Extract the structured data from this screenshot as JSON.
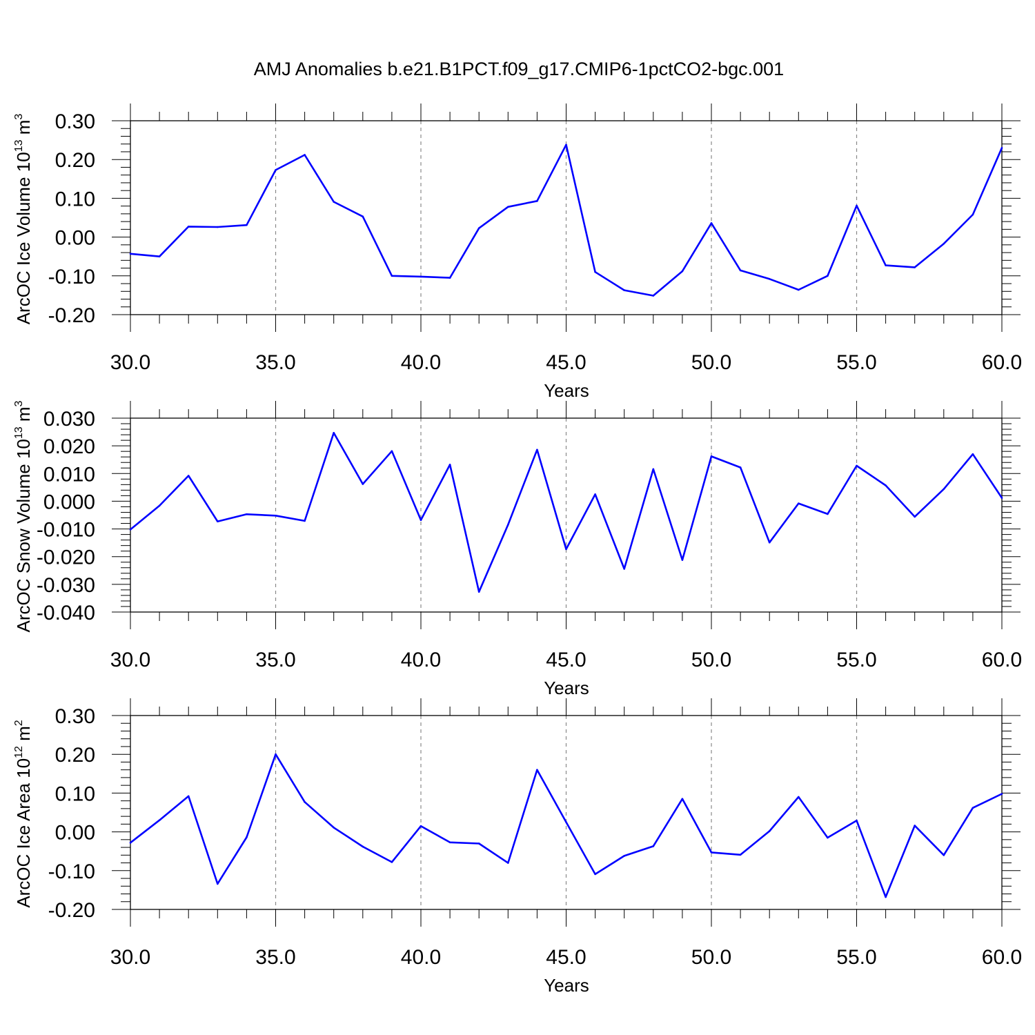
{
  "figure": {
    "title": "AMJ Anomalies b.e21.B1PCT.f09_g17.CMIP6-1pctCO2-bgc.001",
    "line_color": "#0000ff"
  },
  "chart_data": [
    {
      "type": "line",
      "title": "",
      "xlabel": "Years",
      "ylabel": "ArcOC Ice Volume 10",
      "ylabel_sup": "13",
      "ylabel_unit": "m",
      "ylabel_unit_sup": "3",
      "xlim": [
        30,
        60
      ],
      "ylim": [
        -0.2,
        0.3
      ],
      "xticks": [
        30,
        35,
        40,
        45,
        50,
        55,
        60
      ],
      "xtick_labels": [
        "30.0",
        "35.0",
        "40.0",
        "45.0",
        "50.0",
        "55.0",
        "60.0"
      ],
      "yticks": [
        -0.2,
        -0.1,
        0.0,
        0.1,
        0.2,
        0.3
      ],
      "ytick_labels": [
        "-0.20",
        "-0.10",
        "0.00",
        "0.10",
        "0.20",
        "0.30"
      ],
      "grid": "vertical dashed at major x ticks",
      "x": [
        30,
        31,
        32,
        33,
        34,
        35,
        36,
        37,
        38,
        39,
        40,
        41,
        42,
        43,
        44,
        45,
        46,
        47,
        48,
        49,
        50,
        51,
        52,
        53,
        54,
        55,
        56,
        57,
        58,
        59,
        60
      ],
      "series": [
        {
          "values": [
            -0.043,
            -0.05,
            0.027,
            0.026,
            0.031,
            0.173,
            0.212,
            0.091,
            0.053,
            -0.1,
            -0.102,
            -0.105,
            0.023,
            0.078,
            0.093,
            0.238,
            -0.09,
            -0.137,
            -0.151,
            -0.088,
            0.036,
            -0.086,
            -0.108,
            -0.136,
            -0.1,
            0.081,
            -0.073,
            -0.078,
            -0.017,
            0.058,
            0.23
          ]
        }
      ]
    },
    {
      "type": "line",
      "title": "",
      "xlabel": "Years",
      "ylabel": "ArcOC Snow Volume 10",
      "ylabel_sup": "13",
      "ylabel_unit": "m",
      "ylabel_unit_sup": "3",
      "xlim": [
        30,
        60
      ],
      "ylim": [
        -0.04,
        0.03
      ],
      "xticks": [
        30,
        35,
        40,
        45,
        50,
        55,
        60
      ],
      "xtick_labels": [
        "30.0",
        "35.0",
        "40.0",
        "45.0",
        "50.0",
        "55.0",
        "60.0"
      ],
      "yticks": [
        -0.04,
        -0.03,
        -0.02,
        -0.01,
        0.0,
        0.01,
        0.02,
        0.03
      ],
      "ytick_labels": [
        "-0.040",
        "-0.030",
        "-0.020",
        "-0.010",
        "0.000",
        "0.010",
        "0.020",
        "0.030"
      ],
      "grid": "vertical dashed at major x ticks",
      "x": [
        30,
        31,
        32,
        33,
        34,
        35,
        36,
        37,
        38,
        39,
        40,
        41,
        42,
        43,
        44,
        45,
        46,
        47,
        48,
        49,
        50,
        51,
        52,
        53,
        54,
        55,
        56,
        57,
        58,
        59,
        60
      ],
      "series": [
        {
          "values": [
            -0.0102,
            -0.0016,
            0.0092,
            -0.0073,
            -0.0047,
            -0.0052,
            -0.0071,
            0.0247,
            0.0062,
            0.0181,
            -0.0068,
            0.0132,
            -0.0327,
            -0.0085,
            0.0186,
            -0.0173,
            0.0025,
            -0.0244,
            0.0116,
            -0.0212,
            0.0162,
            0.0122,
            -0.0149,
            -0.0008,
            -0.0046,
            0.0128,
            0.0057,
            -0.0056,
            0.0044,
            0.017,
            0.0012
          ]
        }
      ]
    },
    {
      "type": "line",
      "title": "",
      "xlabel": "Years",
      "ylabel": "ArcOC Ice Area 10",
      "ylabel_sup": "12",
      "ylabel_unit": "m",
      "ylabel_unit_sup": "2",
      "xlim": [
        30,
        60
      ],
      "ylim": [
        -0.2,
        0.3
      ],
      "xticks": [
        30,
        35,
        40,
        45,
        50,
        55,
        60
      ],
      "xtick_labels": [
        "30.0",
        "35.0",
        "40.0",
        "45.0",
        "50.0",
        "55.0",
        "60.0"
      ],
      "yticks": [
        -0.2,
        -0.1,
        0.0,
        0.1,
        0.2,
        0.3
      ],
      "ytick_labels": [
        "-0.20",
        "-0.10",
        "0.00",
        "0.10",
        "0.20",
        "0.30"
      ],
      "grid": "vertical dashed at major x ticks",
      "x": [
        30,
        31,
        32,
        33,
        34,
        35,
        36,
        37,
        38,
        39,
        40,
        41,
        42,
        43,
        44,
        45,
        46,
        47,
        48,
        49,
        50,
        51,
        52,
        53,
        54,
        55,
        56,
        57,
        58,
        59,
        60
      ],
      "series": [
        {
          "values": [
            -0.028,
            0.03,
            0.092,
            -0.134,
            -0.014,
            0.2,
            0.077,
            0.011,
            -0.038,
            -0.078,
            0.015,
            -0.027,
            -0.03,
            -0.08,
            0.16,
            0.025,
            -0.109,
            -0.062,
            -0.037,
            0.085,
            -0.053,
            -0.059,
            0.002,
            0.09,
            -0.015,
            0.029,
            -0.168,
            0.016,
            -0.06,
            0.062,
            0.098
          ]
        }
      ]
    }
  ]
}
